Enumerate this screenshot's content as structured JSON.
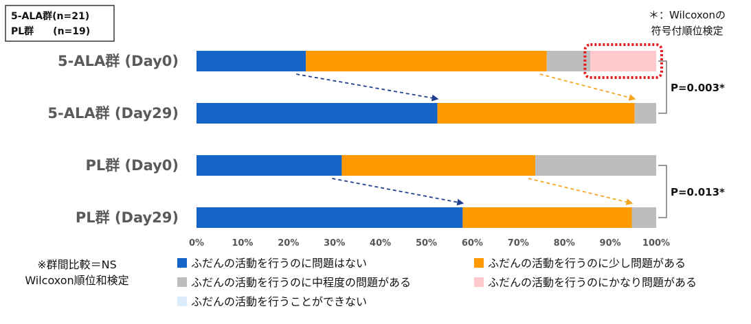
{
  "n_box": {
    "line1": "5-ALA群(n=21)",
    "line2": "PL群　　(n=19)"
  },
  "test_note": {
    "line1": "＊：Wilcoxonの",
    "line2": "符号付順位検定"
  },
  "group_note": {
    "line1": "※群間比較＝NS",
    "line2": "Wilcoxon順位和検定"
  },
  "p_values": [
    {
      "label": "P=0.003*",
      "rows": [
        0,
        1
      ]
    },
    {
      "label": "P=0.013*",
      "rows": [
        2,
        3
      ]
    }
  ],
  "colors": {
    "none": "#1565C8",
    "slight": "#FF9900",
    "moderate": "#BDBDBD",
    "severe": "#FFC9CE",
    "unable": "#DCEBFA",
    "arrow_blue": "#1F3F8F",
    "arrow_orange": "#F5A623",
    "highlight": "#E8181E"
  },
  "chart_data": {
    "type": "bar",
    "orientation": "horizontal",
    "stacked": true,
    "categories": [
      "5-ALA群 (Day0)",
      "5-ALA群 (Day29)",
      "PL群 (Day0)",
      "PL群 (Day29)"
    ],
    "series": [
      {
        "name": "ふだんの活動を行うのに問題はない",
        "color_key": "none",
        "values": [
          23.8,
          52.4,
          31.6,
          57.9
        ]
      },
      {
        "name": "ふだんの活動を行うのに少し問題がある",
        "color_key": "slight",
        "values": [
          52.4,
          42.9,
          42.1,
          36.8
        ]
      },
      {
        "name": "ふだんの活動を行うのに中程度の問題がある",
        "color_key": "moderate",
        "values": [
          9.5,
          4.7,
          26.3,
          5.3
        ]
      },
      {
        "name": "ふだんの活動を行うのにかなり問題がある",
        "color_key": "severe",
        "values": [
          14.3,
          0,
          0,
          0
        ]
      },
      {
        "name": "ふだんの活動を行うことができない",
        "color_key": "unable",
        "values": [
          0,
          0,
          0,
          0
        ]
      }
    ],
    "x_ticks": [
      "0%",
      "10%",
      "20%",
      "30%",
      "40%",
      "50%",
      "60%",
      "70%",
      "80%",
      "90%",
      "100%"
    ],
    "xlim": [
      0,
      100
    ],
    "legend_position": "bottom"
  }
}
